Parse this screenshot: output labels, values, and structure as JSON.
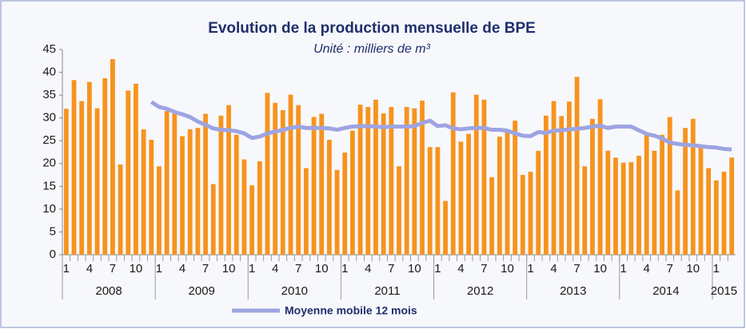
{
  "chart_data": {
    "type": "bar",
    "title": "Evolution de la production mensuelle de BPE",
    "subtitle": "Unité : milliers de m³",
    "categories": [
      "1",
      null,
      null,
      "4",
      null,
      null,
      "7",
      null,
      null,
      "10",
      null,
      null,
      "1",
      null,
      null,
      "4",
      null,
      null,
      "7",
      null,
      null,
      "10",
      null,
      null,
      "1",
      null,
      null,
      "4",
      null,
      null,
      "7",
      null,
      null,
      "10",
      null,
      null,
      "1",
      null,
      null,
      "4",
      null,
      null,
      "7",
      null,
      null,
      "10",
      null,
      null,
      "1",
      null,
      null,
      "4",
      null,
      null,
      "7",
      null,
      null,
      "10",
      null,
      null,
      "1",
      null,
      null,
      "4",
      null,
      null,
      "7",
      null,
      null,
      "10",
      null,
      null,
      "1",
      null,
      null,
      "4",
      null,
      null,
      "7",
      null,
      null,
      "10",
      null,
      null,
      "1",
      null,
      null
    ],
    "year_groups": [
      {
        "label": "2008",
        "months": 12
      },
      {
        "label": "2009",
        "months": 12
      },
      {
        "label": "2010",
        "months": 12
      },
      {
        "label": "2011",
        "months": 12
      },
      {
        "label": "2012",
        "months": 12
      },
      {
        "label": "2013",
        "months": 12
      },
      {
        "label": "2014",
        "months": 12
      },
      {
        "label": "2015",
        "months": 3
      }
    ],
    "series": [
      {
        "type": "bar",
        "color": "#f7931e",
        "values": [
          32,
          38.3,
          33.7,
          37.9,
          32.1,
          38.7,
          42.9,
          19.8,
          36,
          37.5,
          27.5,
          25.2,
          19.4,
          31.5,
          31,
          26,
          27.5,
          27.8,
          30.9,
          15.5,
          30.5,
          32.8,
          26.3,
          20.9,
          15.2,
          20.5,
          35.5,
          33.3,
          31.7,
          35.1,
          32.8,
          19,
          30.2,
          30.9,
          25.2,
          18.6,
          22.4,
          27.2,
          32.9,
          32.4,
          34,
          31,
          32.4,
          19.4,
          32.4,
          32.1,
          33.8,
          23.6,
          23.6,
          11.8,
          35.6,
          24.8,
          26.5,
          35.1,
          34,
          17,
          25.9,
          27.5,
          29.4,
          17.5,
          18.2,
          22.8,
          30.5,
          33.7,
          30.4,
          33.6,
          39,
          19.4,
          29.8,
          34.1,
          22.8,
          21.3,
          20.2,
          20.3,
          21.7,
          26.6,
          22.8,
          26.3,
          30.2,
          14.1,
          27.8,
          29.8,
          23.5,
          19,
          16.3,
          18.2,
          21.3
        ]
      },
      {
        "type": "line",
        "name": "Moyenne mobile 12 mois",
        "color": "#9ea4e2",
        "values": [
          null,
          null,
          null,
          null,
          null,
          null,
          null,
          null,
          null,
          null,
          null,
          33.5,
          32.4,
          32,
          31.3,
          30.8,
          30.2,
          29.2,
          28.5,
          27.7,
          27.4,
          27.3,
          27.1,
          26.6,
          25.6,
          25.9,
          26.6,
          27,
          27.4,
          27.8,
          28.1,
          27.8,
          27.8,
          27.8,
          27.7,
          27.4,
          27.8,
          28.1,
          28.2,
          28.2,
          28.1,
          28,
          28.1,
          28.1,
          28.1,
          28.2,
          28.9,
          29.4,
          28.2,
          28.4,
          27.7,
          27.5,
          27.7,
          27.8,
          27.8,
          27.4,
          27.4,
          27.2,
          26.6,
          26.1,
          26,
          26.9,
          26.7,
          27.2,
          27.3,
          27.5,
          27.6,
          27.8,
          28.1,
          28.3,
          27.8,
          28.1,
          28.1,
          28.1,
          27.3,
          26.5,
          26.1,
          25.5,
          24.6,
          24.3,
          24.1,
          24,
          23.8,
          23.6,
          23.5,
          23.2,
          23.1
        ]
      }
    ],
    "ylim": [
      0,
      45
    ],
    "yticks": [
      0,
      5,
      10,
      15,
      20,
      25,
      30,
      35,
      40,
      45
    ],
    "grid": false,
    "legend": "bottom"
  }
}
